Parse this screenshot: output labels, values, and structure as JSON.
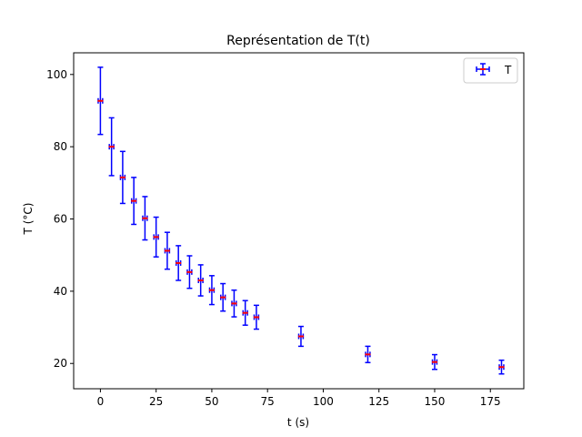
{
  "colors": {
    "error_bar": "#0000ff",
    "marker": "#ff0000",
    "axes": "#000000",
    "background": "#ffffff",
    "legend_border": "#cccccc"
  },
  "chart_data": {
    "type": "scatter",
    "title": "Représentation de T(t)",
    "xlabel": "t (s)",
    "ylabel": "T (°C)",
    "xlim": [
      -12,
      190
    ],
    "ylim": [
      13,
      106
    ],
    "xticks": [
      0,
      25,
      50,
      75,
      100,
      125,
      150,
      175
    ],
    "yticks": [
      20,
      40,
      60,
      80,
      100
    ],
    "grid": false,
    "legend_placement": "top-right",
    "series": [
      {
        "name": "T",
        "marker": "error-bar-cross",
        "x": [
          0,
          5,
          10,
          15,
          20,
          25,
          30,
          35,
          40,
          45,
          50,
          55,
          60,
          65,
          70,
          90,
          120,
          150,
          180
        ],
        "y": [
          92.7,
          80,
          71.5,
          65,
          60.2,
          55,
          51.2,
          47.8,
          45.3,
          43,
          40.3,
          38.3,
          36.6,
          34,
          32.8,
          27.5,
          22.5,
          20.4,
          19
        ],
        "yerr": [
          9.3,
          8,
          7.2,
          6.5,
          6,
          5.5,
          5.1,
          4.8,
          4.5,
          4.3,
          4,
          3.8,
          3.7,
          3.4,
          3.3,
          2.75,
          2.25,
          2.04,
          1.9
        ],
        "xerr": [
          1,
          1,
          1,
          1,
          1,
          1,
          1,
          1,
          1,
          1,
          1,
          1,
          1,
          1,
          1,
          1,
          1,
          1,
          1
        ]
      }
    ]
  }
}
